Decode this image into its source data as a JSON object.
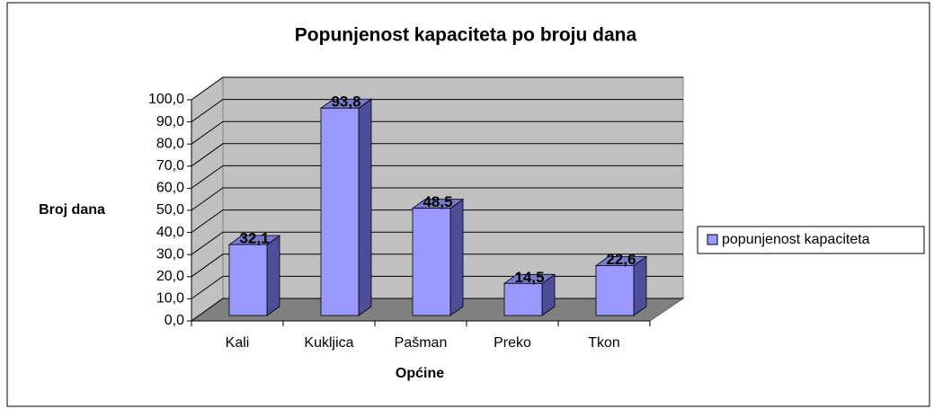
{
  "chart_data": {
    "type": "bar3d",
    "title": "Popunjenost kapaciteta po broju dana",
    "xlabel": "Općine",
    "ylabel": "Broj dana",
    "categories": [
      "Kali",
      "Kukljica",
      "Pašman",
      "Preko",
      "Tkon"
    ],
    "series": [
      {
        "name": "popunjenost kapaciteta",
        "color": "#9999ff",
        "values": [
          32.1,
          93.8,
          48.5,
          14.5,
          22.6
        ],
        "value_labels": [
          "32,1",
          "93,8",
          "48,5",
          "14,5",
          "22,6"
        ]
      }
    ],
    "ylim": [
      0,
      100
    ],
    "yticks": [
      {
        "value": 0,
        "label": "0,0"
      },
      {
        "value": 10,
        "label": "10,0"
      },
      {
        "value": 20,
        "label": "20,0"
      },
      {
        "value": 30,
        "label": "30,0"
      },
      {
        "value": 40,
        "label": "40,0"
      },
      {
        "value": 50,
        "label": "50,0"
      },
      {
        "value": 60,
        "label": "60,0"
      },
      {
        "value": 70,
        "label": "70,0"
      },
      {
        "value": 80,
        "label": "80,0"
      },
      {
        "value": 90,
        "label": "90,0"
      },
      {
        "value": 100,
        "label": "100,0"
      }
    ],
    "grid": true,
    "legend": "right"
  }
}
